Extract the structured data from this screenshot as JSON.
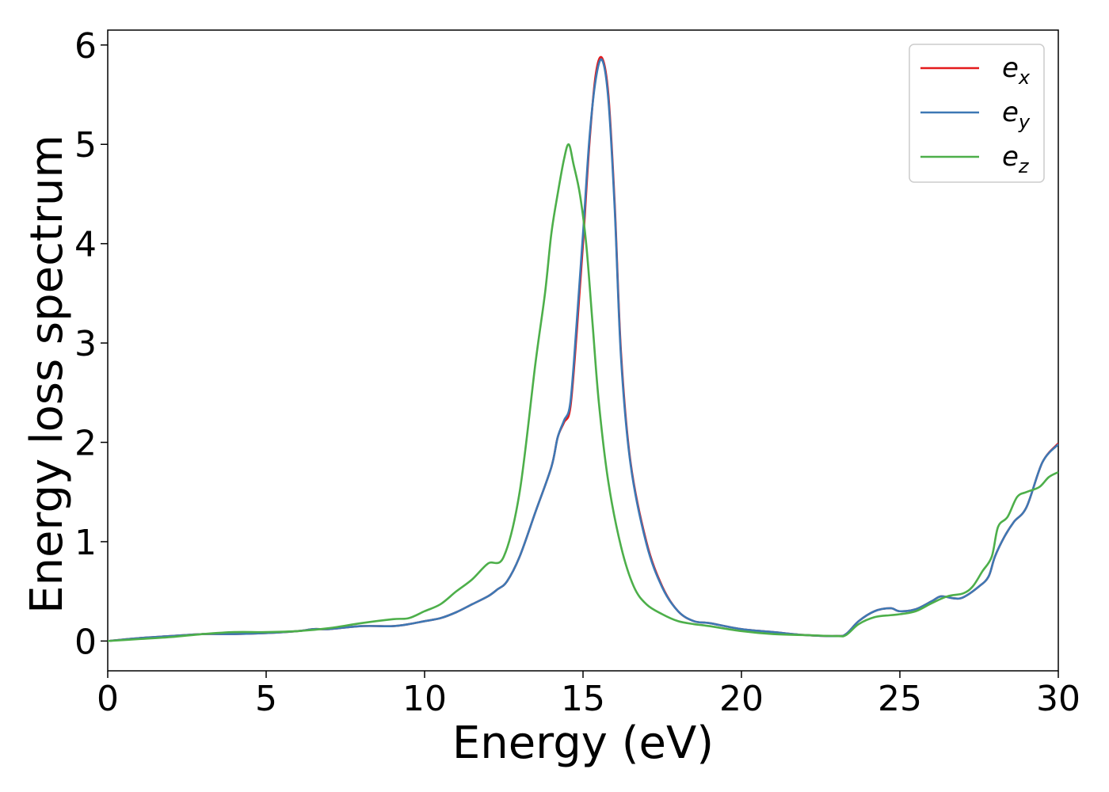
{
  "chart_data": {
    "type": "line",
    "xlabel": "Energy (eV)",
    "ylabel": "Energy loss spectrum",
    "xlim": [
      0,
      30
    ],
    "ylim": [
      -0.3,
      6.15
    ],
    "xticks": [
      0,
      5,
      10,
      15,
      20,
      25,
      30
    ],
    "yticks": [
      0,
      1,
      2,
      3,
      4,
      5,
      6
    ],
    "grid": false,
    "legend_position": "top-right",
    "series": [
      {
        "name": "e_x",
        "legend_base": "e",
        "legend_sub": "x",
        "color": "#e41a1c",
        "x": [
          0,
          1,
          2,
          3,
          4,
          5,
          6,
          6.5,
          7,
          8,
          9,
          9.5,
          10,
          10.5,
          11,
          11.5,
          12,
          12.3,
          12.6,
          13,
          13.5,
          14,
          14.2,
          14.4,
          14.6,
          14.8,
          15,
          15.2,
          15.4,
          15.6,
          15.8,
          16,
          16.2,
          16.5,
          17,
          17.5,
          18,
          18.5,
          19,
          20,
          21,
          22,
          23,
          23.3,
          23.7,
          24.2,
          24.7,
          25,
          25.5,
          26,
          26.3,
          26.7,
          27,
          27.5,
          27.8,
          28,
          28.3,
          28.6,
          29,
          29.5,
          30
        ],
        "y": [
          0,
          0.03,
          0.05,
          0.07,
          0.07,
          0.08,
          0.1,
          0.12,
          0.12,
          0.15,
          0.15,
          0.17,
          0.2,
          0.23,
          0.29,
          0.37,
          0.45,
          0.52,
          0.6,
          0.85,
          1.3,
          1.75,
          2.05,
          2.2,
          2.35,
          3.1,
          4.0,
          5.0,
          5.7,
          5.87,
          5.5,
          4.4,
          2.9,
          1.8,
          1.0,
          0.55,
          0.3,
          0.2,
          0.18,
          0.12,
          0.09,
          0.06,
          0.05,
          0.07,
          0.2,
          0.3,
          0.33,
          0.3,
          0.32,
          0.4,
          0.45,
          0.43,
          0.44,
          0.55,
          0.65,
          0.85,
          1.05,
          1.2,
          1.35,
          1.8,
          1.99
        ]
      },
      {
        "name": "e_y",
        "legend_base": "e",
        "legend_sub": "y",
        "color": "#3d78b4",
        "x": [
          0,
          1,
          2,
          3,
          4,
          5,
          6,
          6.5,
          7,
          8,
          9,
          9.5,
          10,
          10.5,
          11,
          11.5,
          12,
          12.3,
          12.6,
          13,
          13.5,
          14,
          14.2,
          14.4,
          14.6,
          14.8,
          15,
          15.2,
          15.4,
          15.6,
          15.8,
          16,
          16.2,
          16.5,
          17,
          17.5,
          18,
          18.5,
          19,
          20,
          21,
          22,
          23,
          23.3,
          23.7,
          24.2,
          24.7,
          25,
          25.5,
          26,
          26.3,
          26.7,
          27,
          27.5,
          27.8,
          28,
          28.3,
          28.6,
          29,
          29.5,
          30
        ],
        "y": [
          0,
          0.03,
          0.05,
          0.07,
          0.07,
          0.08,
          0.1,
          0.12,
          0.12,
          0.15,
          0.15,
          0.17,
          0.2,
          0.23,
          0.29,
          0.37,
          0.45,
          0.52,
          0.6,
          0.85,
          1.3,
          1.75,
          2.05,
          2.22,
          2.4,
          3.2,
          4.1,
          5.05,
          5.65,
          5.85,
          5.45,
          4.35,
          2.85,
          1.78,
          0.98,
          0.54,
          0.3,
          0.2,
          0.18,
          0.12,
          0.09,
          0.06,
          0.05,
          0.07,
          0.2,
          0.3,
          0.33,
          0.3,
          0.32,
          0.4,
          0.45,
          0.43,
          0.44,
          0.55,
          0.65,
          0.85,
          1.05,
          1.2,
          1.35,
          1.8,
          1.98
        ]
      },
      {
        "name": "e_z",
        "legend_base": "e",
        "legend_sub": "z",
        "color": "#4daf4a",
        "x": [
          0,
          1,
          2,
          3,
          4,
          5,
          6,
          7,
          8,
          9,
          9.5,
          10,
          10.5,
          11,
          11.5,
          12,
          12.5,
          13,
          13.5,
          13.8,
          14,
          14.2,
          14.4,
          14.55,
          14.7,
          14.9,
          15.1,
          15.3,
          15.5,
          15.8,
          16.2,
          16.6,
          17,
          17.5,
          18,
          18.5,
          19,
          20,
          21,
          22,
          23,
          23.3,
          23.7,
          24.2,
          24.7,
          25,
          25.5,
          26,
          26.5,
          27,
          27.3,
          27.6,
          27.9,
          28.1,
          28.4,
          28.7,
          29,
          29.4,
          29.7,
          30
        ],
        "y": [
          0,
          0.02,
          0.04,
          0.07,
          0.09,
          0.09,
          0.1,
          0.13,
          0.18,
          0.22,
          0.23,
          0.3,
          0.37,
          0.5,
          0.62,
          0.78,
          0.85,
          1.5,
          2.8,
          3.5,
          4.1,
          4.5,
          4.85,
          5.0,
          4.8,
          4.5,
          4.0,
          3.2,
          2.4,
          1.6,
          0.95,
          0.55,
          0.37,
          0.27,
          0.2,
          0.17,
          0.15,
          0.1,
          0.07,
          0.06,
          0.05,
          0.06,
          0.17,
          0.24,
          0.26,
          0.27,
          0.3,
          0.38,
          0.45,
          0.48,
          0.55,
          0.7,
          0.85,
          1.15,
          1.25,
          1.45,
          1.5,
          1.55,
          1.65,
          1.7
        ]
      }
    ]
  }
}
